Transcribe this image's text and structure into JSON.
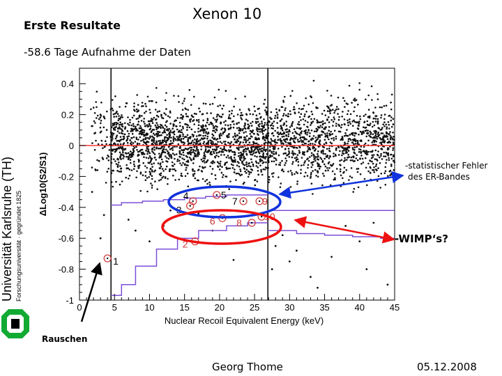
{
  "slide": {
    "heading": "Erste Resultate",
    "title": "Xenon 10",
    "subtitle": "-58.6 Tage Aufnahme der Daten",
    "footer_author": "Georg Thome",
    "footer_date": "05.12.2008"
  },
  "university": {
    "name": "Universität Karlsruhe (TH)",
    "subline": "Forschungsuniversität · gegründet 1825"
  },
  "annotations": {
    "er_band_error_line1": "-statistischer Fehler",
    "er_band_error_line2": "des ER-Bandes",
    "wimp": "-WIMP‘s?",
    "noise": "Rauschen"
  },
  "chart_data": {
    "type": "scatter",
    "xlabel": "Nuclear Recoil Equivalent Energy (keV)",
    "ylabel": "ΔLog10(S2/S1)",
    "xlim": [
      0,
      45
    ],
    "ylim": [
      -1,
      0.5
    ],
    "xticks": [
      "0",
      "5",
      "10",
      "15",
      "20",
      "25",
      "30",
      "35",
      "40",
      "45"
    ],
    "yticks": [
      "0.4",
      "0.2",
      "0",
      "-0.2",
      "-0.4",
      "-0.6",
      "-0.8",
      "-1"
    ],
    "vertical_lines": [
      4.5,
      26.9
    ],
    "reference_line_y": 0,
    "colors": {
      "reference_line": "#ff3333",
      "band_lines": "#7b4fd8",
      "points": "#111111",
      "candidates": "#cc3333",
      "ellipse_er": "#1133dd",
      "ellipse_wimp": "#ee1111",
      "arrow_er": "#1133dd",
      "arrow_wimp": "#ee1111"
    },
    "band_upper": [
      [
        4.5,
        -0.385
      ],
      [
        6,
        -0.385
      ],
      [
        6,
        -0.37
      ],
      [
        9,
        -0.37
      ],
      [
        9,
        -0.36
      ],
      [
        12,
        -0.36
      ],
      [
        12,
        -0.35
      ],
      [
        15,
        -0.35
      ],
      [
        15,
        -0.34
      ],
      [
        18,
        -0.34
      ],
      [
        18,
        -0.33
      ],
      [
        21,
        -0.33
      ],
      [
        21,
        -0.32
      ],
      [
        26.9,
        -0.32
      ]
    ],
    "band_lower_left": [
      [
        4.5,
        -0.97
      ],
      [
        6,
        -0.97
      ],
      [
        6,
        -0.9
      ],
      [
        8,
        -0.9
      ],
      [
        8,
        -0.78
      ],
      [
        11,
        -0.78
      ],
      [
        11,
        -0.67
      ],
      [
        14,
        -0.67
      ],
      [
        14,
        -0.6
      ],
      [
        17,
        -0.6
      ],
      [
        17,
        -0.55
      ],
      [
        21,
        -0.55
      ],
      [
        21,
        -0.52
      ],
      [
        24,
        -0.52
      ],
      [
        24,
        -0.5
      ],
      [
        26.9,
        -0.5
      ]
    ],
    "band_right": [
      [
        26.9,
        -0.55
      ],
      [
        31,
        -0.55
      ],
      [
        31,
        -0.57
      ],
      [
        35,
        -0.57
      ],
      [
        35,
        -0.58
      ],
      [
        39,
        -0.58
      ],
      [
        39,
        -0.59
      ],
      [
        43,
        -0.59
      ],
      [
        43,
        -0.6
      ],
      [
        45,
        -0.6
      ]
    ],
    "band_right_upper": [
      [
        26.9,
        -0.42
      ],
      [
        45,
        -0.42
      ]
    ],
    "candidates": [
      {
        "id": "1",
        "x": 4.0,
        "y": -0.73
      },
      {
        "id": "2",
        "x": 16.5,
        "y": -0.62
      },
      {
        "id": "3",
        "x": 15.8,
        "y": -0.39
      },
      {
        "id": "4",
        "x": 16.2,
        "y": -0.36
      },
      {
        "id": "5",
        "x": 19.6,
        "y": -0.32
      },
      {
        "id": "6",
        "x": 20.4,
        "y": -0.47
      },
      {
        "id": "7",
        "x": 23.4,
        "y": -0.36
      },
      {
        "id": "8",
        "x": 24.6,
        "y": -0.5
      },
      {
        "id": "9",
        "x": 25.7,
        "y": -0.36
      },
      {
        "id": "10",
        "x": 26.0,
        "y": -0.46
      }
    ],
    "sparse_points": [
      [
        3,
        -0.6
      ],
      [
        2.5,
        -0.8
      ],
      [
        3.5,
        -0.45
      ],
      [
        3,
        0.2
      ],
      [
        2.8,
        -0.1
      ],
      [
        1.8,
        -0.3
      ],
      [
        30,
        -0.75
      ],
      [
        33,
        -0.85
      ],
      [
        36,
        -0.72
      ],
      [
        41,
        -0.8
      ],
      [
        44,
        -0.9
      ],
      [
        28,
        -0.65
      ],
      [
        38,
        -0.52
      ],
      [
        42,
        -0.5
      ],
      [
        27.5,
        -0.8
      ],
      [
        31,
        -0.68
      ],
      [
        34,
        -0.92
      ],
      [
        40,
        -0.62
      ],
      [
        22,
        -0.74
      ],
      [
        19,
        -0.55
      ],
      [
        12,
        -0.52
      ],
      [
        10,
        -0.62
      ],
      [
        8,
        -0.55
      ],
      [
        7,
        -0.48
      ],
      [
        13,
        -0.42
      ],
      [
        17,
        -0.44
      ],
      [
        29,
        -0.58
      ]
    ],
    "clouds": [
      {
        "x_from": 1.5,
        "x_to": 4.5,
        "count": 60,
        "y_mean": 0.05,
        "y_sd": 0.13
      },
      {
        "x_from": 4.5,
        "x_to": 27,
        "count": 1650,
        "y_mean": 0.02,
        "y_sd": 0.12
      },
      {
        "x_from": 27,
        "x_to": 45,
        "count": 1100,
        "y_mean": 0.03,
        "y_sd": 0.13
      }
    ]
  }
}
